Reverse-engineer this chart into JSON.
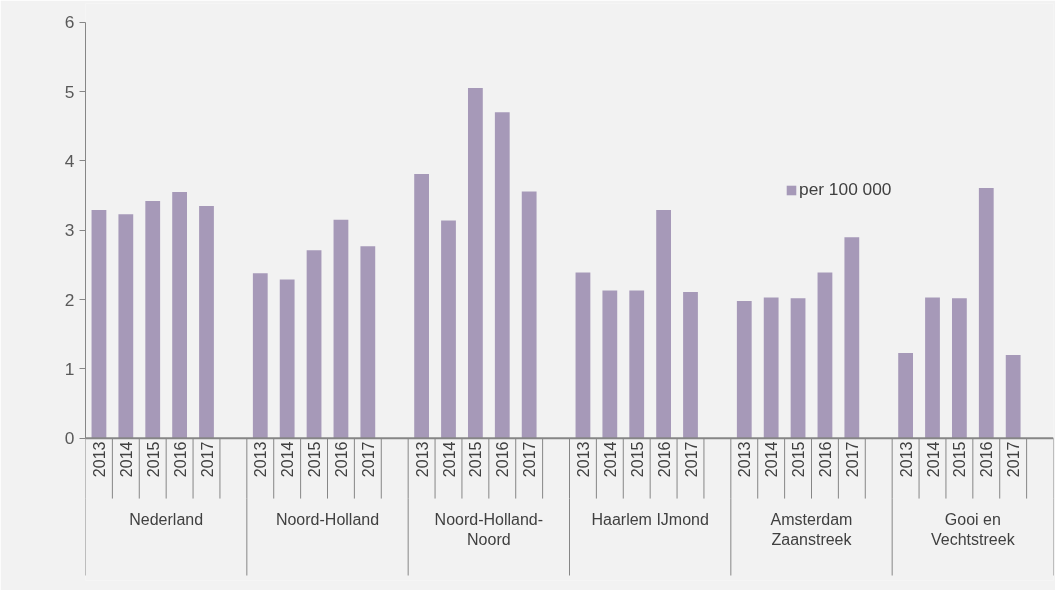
{
  "chart_data": {
    "type": "bar",
    "categories": [
      "2013",
      "2014",
      "2015",
      "2016",
      "2017",
      null,
      "2013",
      "2014",
      "2015",
      "2016",
      "2017",
      null,
      "2013",
      "2014",
      "2015",
      "2016",
      "2017",
      null,
      "2013",
      "2014",
      "2015",
      "2016",
      "2017",
      null,
      "2013",
      "2014",
      "2015",
      "2016",
      "2017",
      null,
      "2013",
      "2014",
      "2015",
      "2016",
      "2017",
      null
    ],
    "annotations": [
      "Nederland",
      "Noord-Holland",
      "Noord-Holland-\nNoord",
      "Haarlem IJmond",
      "Amsterdam\nZaanstreek",
      "Gooi en\nVechtstreek"
    ],
    "series": [
      {
        "name": "per 100 000",
        "color": "#a699b8",
        "values": [
          3.29,
          3.23,
          3.42,
          3.55,
          3.35,
          null,
          2.38,
          2.29,
          2.71,
          3.15,
          2.77,
          null,
          3.81,
          3.14,
          5.05,
          4.7,
          3.56,
          null,
          2.39,
          2.13,
          2.13,
          3.29,
          2.11,
          null,
          1.98,
          2.03,
          2.02,
          2.39,
          2.9,
          null,
          1.23,
          2.03,
          2.02,
          3.61,
          1.2,
          null
        ]
      }
    ],
    "ylim": [
      0,
      6
    ],
    "yticks": [
      0,
      1,
      2,
      3,
      4,
      5,
      6
    ],
    "grid": false,
    "legend": "top right"
  }
}
